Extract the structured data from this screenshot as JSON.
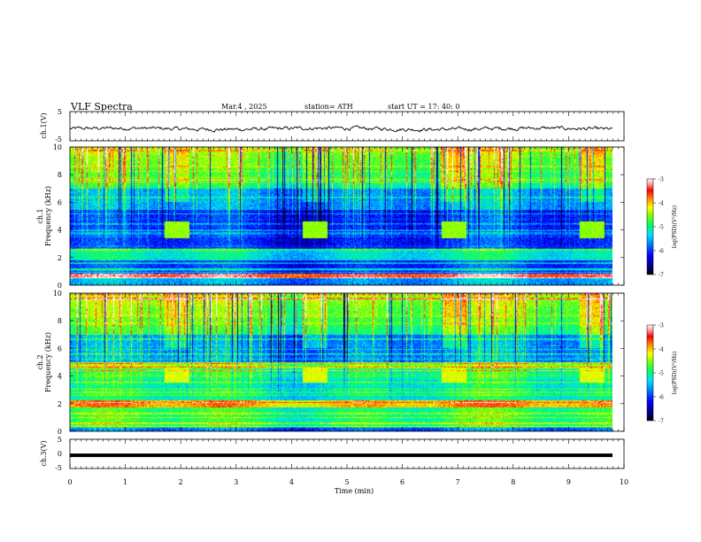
{
  "header": {
    "title": "VLF  Spectra",
    "date": "Mar.4  , 2025",
    "station": "station= ATH",
    "start": "start  UT  =    17: 40: 0"
  },
  "chart_data": [
    {
      "type": "line",
      "name": "ch1-waveform",
      "ylabel": "ch.1(V)",
      "ylim": [
        -5,
        5
      ],
      "yticks": [
        "5",
        "-5"
      ],
      "xlim": [
        0,
        10
      ],
      "description_level": 0
    },
    {
      "type": "heatmap",
      "name": "ch1-spectrogram",
      "ylabel_line1": "ch.1",
      "ylabel_line2": "Frequency  (kHz)",
      "ylim": [
        0,
        10
      ],
      "yticks": [
        "0",
        "2",
        "4",
        "6",
        "8",
        "10"
      ],
      "xlim": [
        0,
        10
      ],
      "tone_bursts_min": [
        1.7,
        4.2,
        6.7,
        9.2
      ],
      "colorbar": {
        "label": "log(PSD)(V²/Hz)",
        "range": [
          -7,
          -3
        ],
        "ticks": [
          "-3",
          "-4",
          "-5",
          "-6",
          "-7"
        ]
      }
    },
    {
      "type": "heatmap",
      "name": "ch2-spectrogram",
      "ylabel_line1": "ch.2",
      "ylabel_line2": "Frequency  (kHz)",
      "ylim": [
        0,
        10
      ],
      "yticks": [
        "0",
        "2",
        "4",
        "6",
        "8",
        "10"
      ],
      "xlim": [
        0,
        10
      ],
      "tone_bursts_min": [
        1.7,
        4.2,
        6.7,
        9.2
      ],
      "colorbar": {
        "label": "log(PSD)(V²/Hz)",
        "range": [
          -7,
          -3
        ],
        "ticks": [
          "-3",
          "-4",
          "-5",
          "-6",
          "-7"
        ]
      }
    },
    {
      "type": "line",
      "name": "ch3-waveform",
      "ylabel": "ch.3(V)",
      "ylim": [
        -5,
        5
      ],
      "yticks": [
        "5",
        "0",
        "-5"
      ],
      "xlim": [
        0,
        10
      ],
      "level": -0.5
    }
  ],
  "xaxis": {
    "label": "Time  (min)",
    "ticks": [
      "0",
      "1",
      "2",
      "3",
      "4",
      "5",
      "6",
      "7",
      "8",
      "9",
      "10"
    ]
  },
  "colormap": [
    "#000000",
    "#000080",
    "#0000ff",
    "#0080ff",
    "#00d0ff",
    "#00ff80",
    "#40ff00",
    "#ffff00",
    "#ff8000",
    "#ff0000",
    "#ffffff"
  ]
}
